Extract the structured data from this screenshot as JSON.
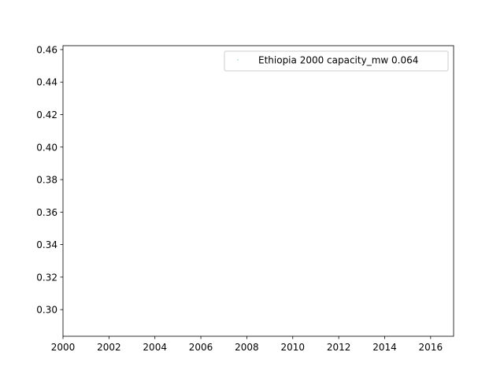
{
  "chart_data": {
    "type": "scatter",
    "title": "",
    "xlabel": "",
    "ylabel": "",
    "xlim": [
      2000,
      2017
    ],
    "ylim": [
      0.2836,
      0.4624
    ],
    "xticks": [
      2000,
      2002,
      2004,
      2006,
      2008,
      2010,
      2012,
      2014,
      2016
    ],
    "yticks": [
      0.3,
      0.32,
      0.34,
      0.36,
      0.38,
      0.4,
      0.42,
      0.44,
      0.46
    ],
    "xtick_labels": [
      "2000",
      "2002",
      "2004",
      "2006",
      "2008",
      "2010",
      "2012",
      "2014",
      "2016"
    ],
    "ytick_labels": [
      "0.30",
      "0.32",
      "0.34",
      "0.36",
      "0.38",
      "0.40",
      "0.42",
      "0.44",
      "0.46"
    ],
    "grid": false,
    "legend_position": "top-right",
    "series": [
      {
        "name": "Ethiopia 2000 capacity_mw 0.064",
        "color": "#1f77b4",
        "points": []
      }
    ]
  }
}
